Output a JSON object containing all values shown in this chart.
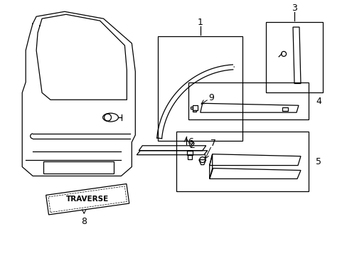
{
  "bg_color": "#ffffff",
  "line_color": "#000000",
  "fig_width": 4.89,
  "fig_height": 3.6,
  "dpi": 100,
  "lw": 0.9
}
